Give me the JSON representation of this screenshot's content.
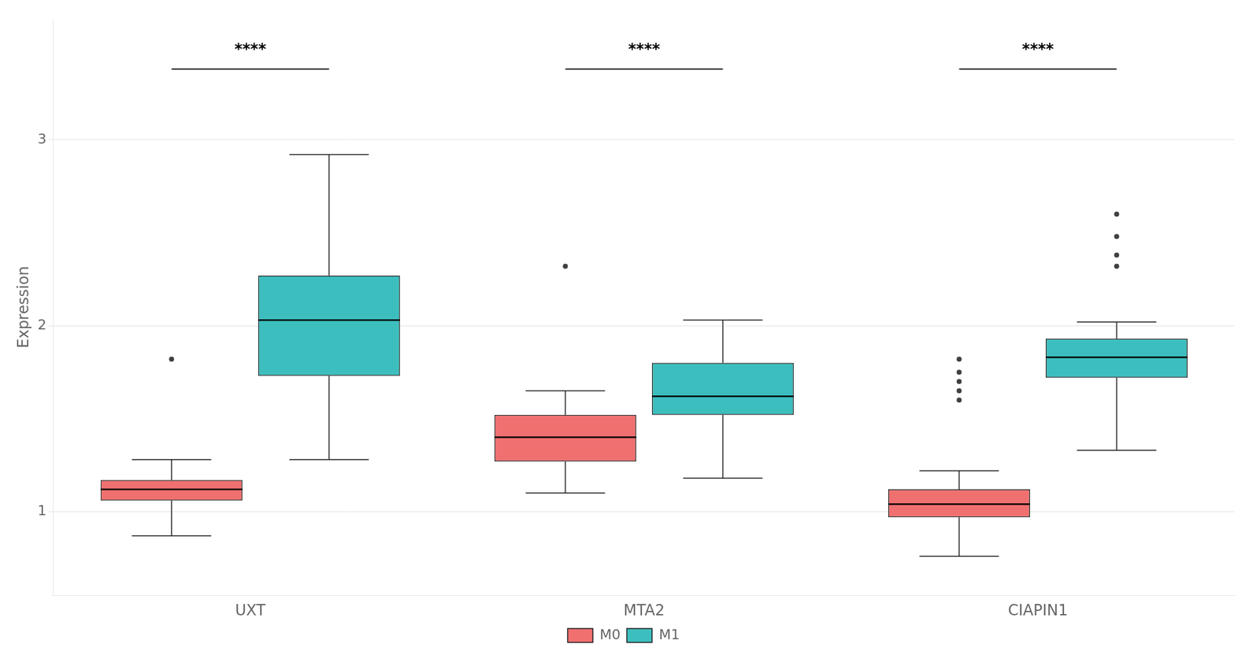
{
  "chart_data": {
    "type": "boxplot",
    "categories": [
      "UXT",
      "MTA2",
      "CIAPIN1"
    ],
    "series": [
      {
        "name": "M0",
        "color": "#F07070",
        "values": [
          {
            "q1": 1.06,
            "median": 1.12,
            "q3": 1.17,
            "whisker_low": 0.87,
            "whisker_high": 1.28,
            "outliers": [
              1.82
            ]
          },
          {
            "q1": 1.27,
            "median": 1.4,
            "q3": 1.52,
            "whisker_low": 1.1,
            "whisker_high": 1.65,
            "outliers": [
              2.32
            ]
          },
          {
            "q1": 0.97,
            "median": 1.04,
            "q3": 1.12,
            "whisker_low": 0.76,
            "whisker_high": 1.22,
            "outliers": [
              1.82,
              1.75,
              1.7,
              1.65,
              1.6
            ]
          }
        ]
      },
      {
        "name": "M1",
        "color": "#3DBEBE",
        "values": [
          {
            "q1": 1.73,
            "median": 2.03,
            "q3": 2.27,
            "whisker_low": 1.28,
            "whisker_high": 2.92,
            "outliers": []
          },
          {
            "q1": 1.52,
            "median": 1.62,
            "q3": 1.8,
            "whisker_low": 1.18,
            "whisker_high": 2.03,
            "outliers": []
          },
          {
            "q1": 1.72,
            "median": 1.83,
            "q3": 1.93,
            "whisker_low": 1.33,
            "whisker_high": 2.02,
            "outliers": [
              2.6,
              2.48,
              2.38,
              2.32
            ]
          }
        ]
      }
    ],
    "ylabel": "Expression",
    "ylim": [
      0.55,
      3.65
    ],
    "yticks": [
      1,
      2,
      3
    ],
    "grid": true,
    "legend": "bottom",
    "annotations": [
      {
        "category": "UXT",
        "text": "****",
        "y": 3.44,
        "bracket_y": 3.38
      },
      {
        "category": "MTA2",
        "text": "****",
        "y": 3.44,
        "bracket_y": 3.38
      },
      {
        "category": "CIAPIN1",
        "text": "****",
        "y": 3.44,
        "bracket_y": 3.38
      }
    ]
  }
}
